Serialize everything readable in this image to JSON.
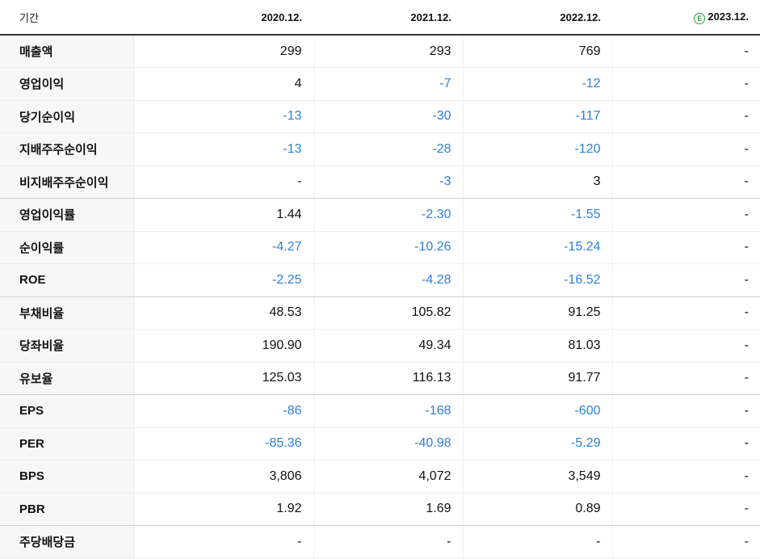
{
  "header": {
    "period_label": "기간",
    "periods": [
      "2020.12.",
      "2021.12.",
      "2022.12.",
      "2023.12."
    ],
    "estimate_badge": "E"
  },
  "colors": {
    "negative": "#2f7ed8",
    "positive": "#111111",
    "estimate_badge": "#2e9e3e"
  },
  "rows": [
    {
      "label": "매출액",
      "values": [
        "299",
        "293",
        "769",
        "-"
      ]
    },
    {
      "label": "영업이익",
      "values": [
        "4",
        "-7",
        "-12",
        "-"
      ]
    },
    {
      "label": "당기순이익",
      "values": [
        "-13",
        "-30",
        "-117",
        "-"
      ]
    },
    {
      "label": "지배주주순이익",
      "values": [
        "-13",
        "-28",
        "-120",
        "-"
      ]
    },
    {
      "label": "비지배주주순이익",
      "values": [
        "-",
        "-3",
        "3",
        "-"
      ]
    },
    {
      "label": "영업이익률",
      "values": [
        "1.44",
        "-2.30",
        "-1.55",
        "-"
      ]
    },
    {
      "label": "순이익률",
      "values": [
        "-4.27",
        "-10.26",
        "-15.24",
        "-"
      ]
    },
    {
      "label": "ROE",
      "values": [
        "-2.25",
        "-4.28",
        "-16.52",
        "-"
      ]
    },
    {
      "label": "부채비율",
      "values": [
        "48.53",
        "105.82",
        "91.25",
        "-"
      ]
    },
    {
      "label": "당좌비율",
      "values": [
        "190.90",
        "49.34",
        "81.03",
        "-"
      ]
    },
    {
      "label": "유보율",
      "values": [
        "125.03",
        "116.13",
        "91.77",
        "-"
      ]
    },
    {
      "label": "EPS",
      "values": [
        "-86",
        "-168",
        "-600",
        "-"
      ]
    },
    {
      "label": "PER",
      "values": [
        "-85.36",
        "-40.98",
        "-5.29",
        "-"
      ]
    },
    {
      "label": "BPS",
      "values": [
        "3,806",
        "4,072",
        "3,549",
        "-"
      ]
    },
    {
      "label": "PBR",
      "values": [
        "1.92",
        "1.69",
        "0.89",
        "-"
      ]
    },
    {
      "label": "주당배당금",
      "values": [
        "-",
        "-",
        "-",
        "-"
      ]
    }
  ]
}
